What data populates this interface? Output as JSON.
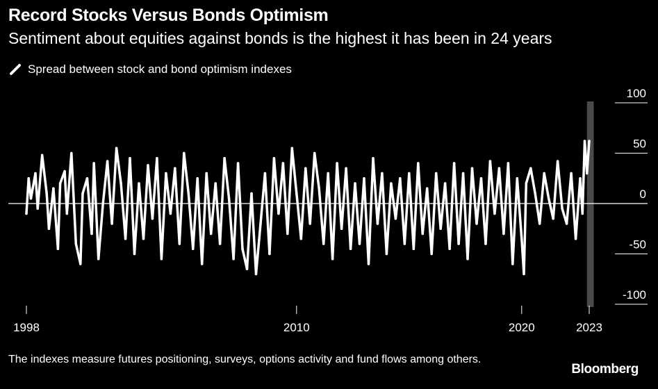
{
  "header": {
    "title": "Record Stocks Versus Bonds Optimism",
    "subtitle": "Sentiment about equities against bonds is the highest it has been in 24 years"
  },
  "footer": {
    "note": "The indexes measure futures positioning, surveys, options activity and fund flows among others.",
    "brand": "Bloomberg"
  },
  "colors": {
    "background": "#000000",
    "series": "#ffffff",
    "highlight_band": "#4a4a4a",
    "text": "#ffffff"
  },
  "chart_data": {
    "type": "line",
    "legend_position": "top-left",
    "grid": "horizontal",
    "y_axis_side": "right",
    "xlim": [
      1998,
      2024
    ],
    "ylim": [
      -100,
      100
    ],
    "y_ticks": [
      100,
      50,
      0,
      -50,
      -100
    ],
    "x_ticks": [
      {
        "value": 1998,
        "label": "1998"
      },
      {
        "value": 2010,
        "label": "2010"
      },
      {
        "value": 2020,
        "label": "2020"
      },
      {
        "value": 2023,
        "label": "2023"
      }
    ],
    "highlight_band": {
      "from": 2022.9,
      "to": 2023.2
    },
    "series": [
      {
        "name": "Spread between stock and bond optimism indexes",
        "x": [
          1998.0,
          1998.1,
          1998.2,
          1998.4,
          1998.5,
          1998.7,
          1998.9,
          1999.0,
          1999.2,
          1999.4,
          1999.5,
          1999.7,
          1999.8,
          2000.0,
          2000.2,
          2000.4,
          2000.5,
          2000.7,
          2000.9,
          2001.0,
          2001.2,
          2001.4,
          2001.6,
          2001.8,
          2002.0,
          2002.2,
          2002.4,
          2002.6,
          2002.8,
          2003.0,
          2003.2,
          2003.4,
          2003.6,
          2003.8,
          2004.0,
          2004.2,
          2004.4,
          2004.6,
          2004.8,
          2005.0,
          2005.2,
          2005.4,
          2005.6,
          2005.8,
          2006.0,
          2006.2,
          2006.4,
          2006.6,
          2006.8,
          2007.0,
          2007.2,
          2007.4,
          2007.6,
          2007.8,
          2008.0,
          2008.2,
          2008.4,
          2008.6,
          2008.8,
          2009.0,
          2009.2,
          2009.4,
          2009.6,
          2009.8,
          2010.0,
          2010.2,
          2010.4,
          2010.6,
          2010.8,
          2011.0,
          2011.2,
          2011.4,
          2011.6,
          2011.8,
          2012.0,
          2012.2,
          2012.4,
          2012.6,
          2012.8,
          2013.0,
          2013.2,
          2013.4,
          2013.6,
          2013.8,
          2014.0,
          2014.2,
          2014.4,
          2014.6,
          2014.8,
          2015.0,
          2015.2,
          2015.4,
          2015.6,
          2015.8,
          2016.0,
          2016.2,
          2016.4,
          2016.6,
          2016.8,
          2017.0,
          2017.2,
          2017.4,
          2017.6,
          2017.8,
          2018.0,
          2018.2,
          2018.4,
          2018.6,
          2018.8,
          2019.0,
          2019.2,
          2019.4,
          2019.6,
          2019.8,
          2020.0,
          2020.1,
          2020.2,
          2020.4,
          2020.6,
          2020.8,
          2021.0,
          2021.2,
          2021.4,
          2021.6,
          2021.8,
          2022.0,
          2022.2,
          2022.4,
          2022.6,
          2022.7,
          2022.8,
          2022.9,
          2023.0
        ],
        "values": [
          -10,
          25,
          5,
          30,
          -5,
          48,
          10,
          -25,
          15,
          -45,
          20,
          32,
          -10,
          50,
          -40,
          -60,
          10,
          25,
          -30,
          40,
          -55,
          0,
          42,
          -20,
          55,
          20,
          -35,
          45,
          -50,
          20,
          -35,
          38,
          -15,
          45,
          -55,
          30,
          -10,
          35,
          -40,
          50,
          10,
          -45,
          25,
          -60,
          30,
          -30,
          20,
          -40,
          45,
          5,
          -55,
          40,
          -45,
          -65,
          10,
          -70,
          -20,
          30,
          -50,
          45,
          -10,
          40,
          -30,
          55,
          10,
          -35,
          35,
          -20,
          50,
          15,
          -40,
          30,
          -55,
          40,
          -25,
          35,
          -45,
          20,
          -40,
          25,
          -60,
          45,
          -20,
          30,
          -50,
          20,
          -15,
          25,
          -40,
          30,
          -45,
          40,
          -30,
          15,
          -50,
          30,
          -25,
          20,
          -45,
          40,
          -40,
          30,
          -55,
          35,
          -20,
          25,
          -40,
          42,
          -10,
          35,
          -30,
          40,
          -60,
          25,
          -35,
          -70,
          20,
          35,
          10,
          -20,
          30,
          5,
          -15,
          42,
          -5,
          -20,
          30,
          -35,
          25,
          -10,
          62,
          30,
          62
        ]
      }
    ]
  }
}
